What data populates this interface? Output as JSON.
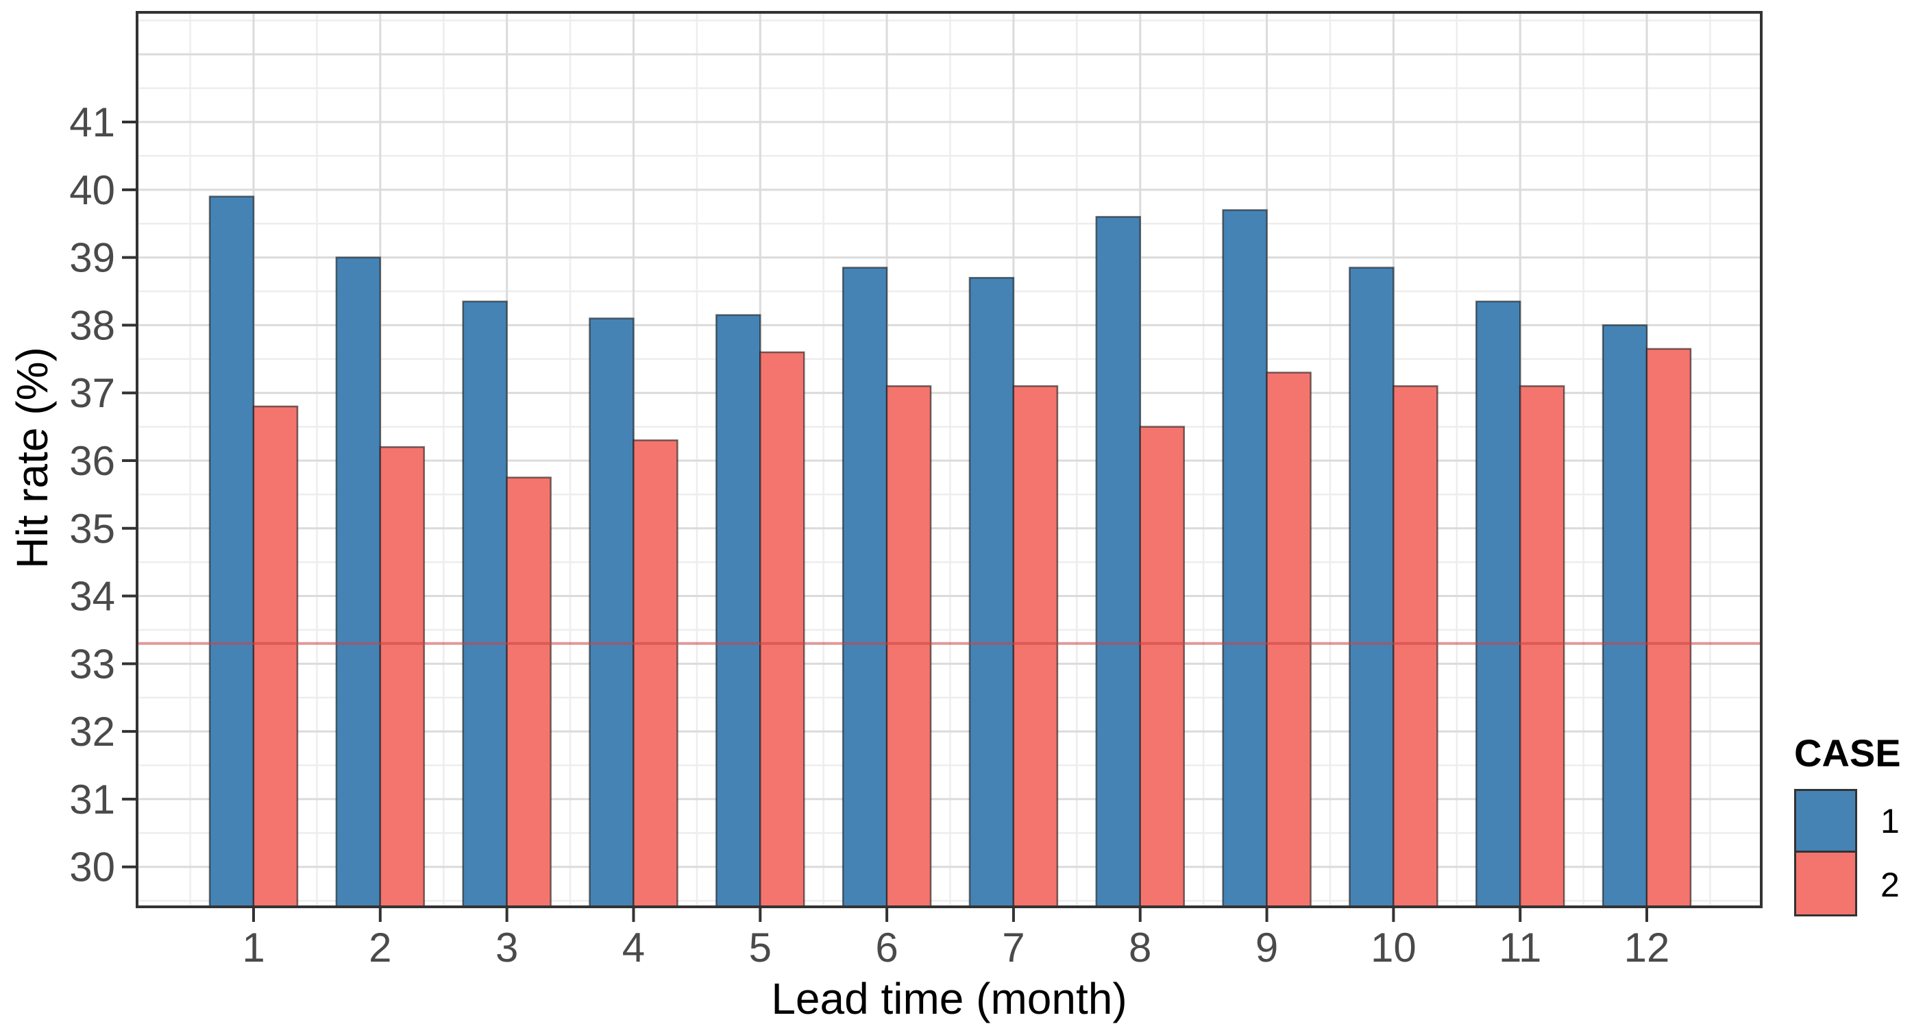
{
  "chart_data": {
    "type": "bar",
    "title": "",
    "xlabel": "Lead time (month)",
    "ylabel": "Hit rate (%)",
    "categories": [
      "1",
      "2",
      "3",
      "4",
      "5",
      "6",
      "7",
      "8",
      "9",
      "10",
      "11",
      "12"
    ],
    "series": [
      {
        "name": "1",
        "color": "#4583B5",
        "values": [
          39.9,
          39.0,
          38.35,
          38.1,
          38.15,
          38.85,
          38.7,
          39.6,
          39.7,
          38.85,
          38.35,
          38.0
        ]
      },
      {
        "name": "2",
        "color": "#F4756E",
        "values": [
          36.8,
          36.2,
          35.75,
          36.3,
          37.6,
          37.1,
          37.1,
          36.5,
          37.3,
          37.1,
          37.1,
          37.65
        ]
      }
    ],
    "reference_line": {
      "value": 33.3,
      "color": "#C84444",
      "opacity": 0.55
    },
    "y_axis": {
      "ticks": [
        30,
        31,
        32,
        33,
        34,
        35,
        36,
        37,
        38,
        39,
        40,
        41
      ],
      "minor_step": 0.5,
      "display_min": 29.41,
      "display_max": 42.62
    },
    "x_axis": {
      "tick_labels": [
        "1",
        "2",
        "3",
        "4",
        "5",
        "6",
        "7",
        "8",
        "9",
        "10",
        "11",
        "12"
      ]
    },
    "legend": {
      "title": "CASE",
      "position": "right",
      "entries": [
        {
          "label": "1"
        },
        {
          "label": "2"
        }
      ]
    },
    "grid": {
      "major_color": "#DBDBDB",
      "minor_color": "#EDEDED",
      "on": true
    },
    "colors": {
      "bar_outline": "rgba(25,25,25,0.6)",
      "panel_border": "#333333",
      "tick_label": "#4A4A4A",
      "axis_title": "#000000"
    },
    "ylim": [
      29.41,
      42.62
    ]
  }
}
